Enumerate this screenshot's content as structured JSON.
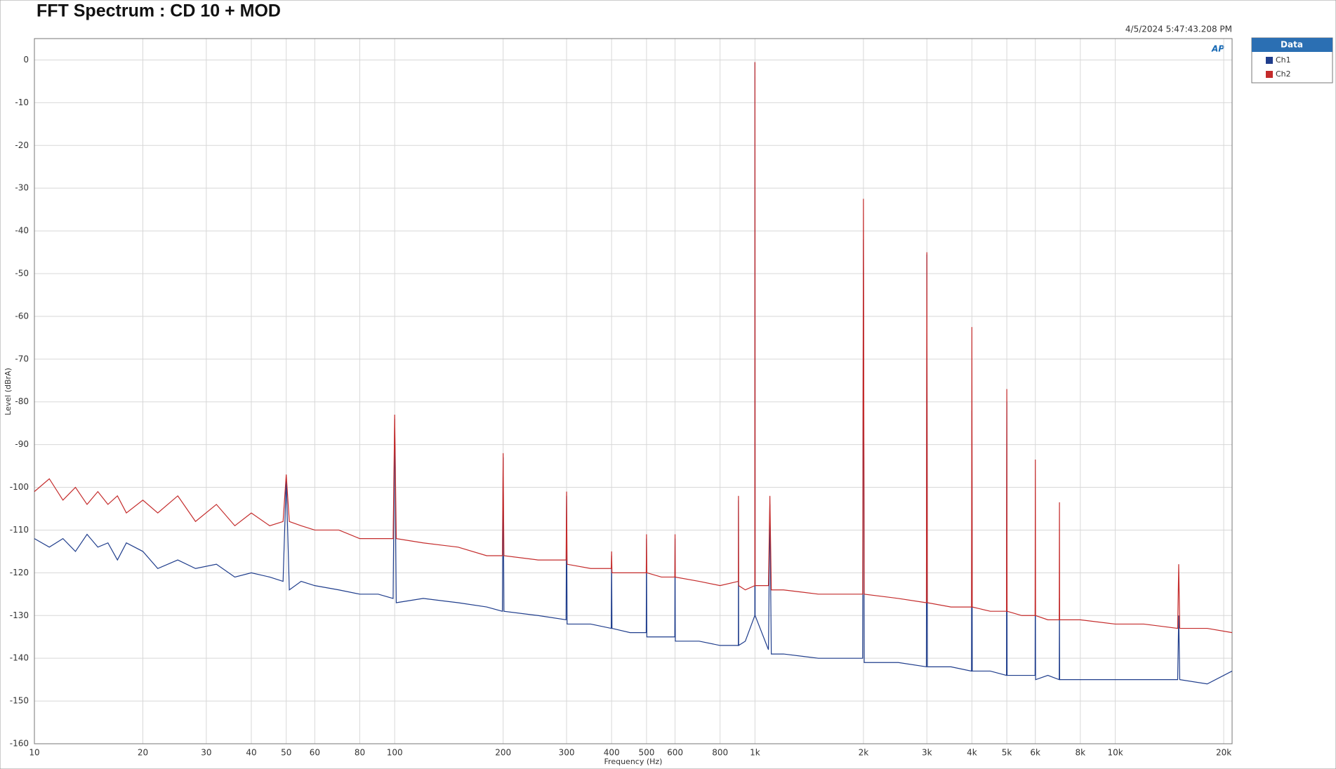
{
  "chart_data": {
    "type": "line",
    "title": "FFT Spectrum : CD 10 + MOD",
    "timestamp": "4/5/2024 5:47:43.208 PM",
    "logo": "AP",
    "x_label": "Frequency (Hz)",
    "y_label": "Level (dBrA)",
    "legend_title": "Data",
    "legend_position": "right",
    "xscale": "log",
    "grid": true,
    "xlim": [
      10,
      21100
    ],
    "ylim": [
      -160,
      5
    ],
    "xticks": [
      10,
      20,
      30,
      40,
      50,
      60,
      80,
      100,
      200,
      300,
      400,
      500,
      600,
      800,
      {
        "value": 1000,
        "label": "1k"
      },
      {
        "value": 2000,
        "label": "2k"
      },
      {
        "value": 3000,
        "label": "3k"
      },
      {
        "value": 4000,
        "label": "4k"
      },
      {
        "value": 5000,
        "label": "5k"
      },
      {
        "value": 6000,
        "label": "6k"
      },
      {
        "value": 8000,
        "label": "8k"
      },
      {
        "value": 10000,
        "label": "10k"
      },
      {
        "value": 20000,
        "label": "20k"
      }
    ],
    "yticks": [
      0,
      -10,
      -20,
      -30,
      -40,
      -50,
      -60,
      -70,
      -80,
      -90,
      -100,
      -110,
      -120,
      -130,
      -140,
      -150,
      -160
    ],
    "x": [
      10,
      11,
      12,
      13,
      14,
      15,
      16,
      17,
      18,
      20,
      22,
      25,
      28,
      32,
      36,
      40,
      45,
      49,
      50,
      51,
      55,
      60,
      70,
      80,
      90,
      99,
      100,
      101,
      120,
      150,
      180,
      199,
      200,
      201,
      250,
      299,
      300,
      301,
      350,
      399,
      400,
      401,
      450,
      499,
      500,
      501,
      550,
      599,
      600,
      601,
      700,
      800,
      899,
      900,
      901,
      940,
      999,
      1000,
      1001,
      1090,
      1100,
      1110,
      1200,
      1500,
      1990,
      2000,
      2010,
      2500,
      2990,
      3000,
      3010,
      3500,
      3990,
      4000,
      4010,
      4500,
      4990,
      5000,
      5010,
      5500,
      5990,
      6000,
      6010,
      6500,
      6990,
      7000,
      7010,
      8000,
      10000,
      12000,
      14900,
      15000,
      15100,
      18000,
      21100
    ],
    "series": [
      {
        "name": "Ch1",
        "color": "#1f3d8c",
        "values": [
          -112,
          -114,
          -112,
          -115,
          -111,
          -114,
          -113,
          -117,
          -113,
          -115,
          -119,
          -117,
          -119,
          -118,
          -121,
          -120,
          -121,
          -122,
          -98,
          -124,
          -122,
          -123,
          -124,
          -125,
          -125,
          -126,
          -84,
          -127,
          -126,
          -127,
          -128,
          -129,
          -93,
          -129,
          -130,
          -131,
          -102,
          -132,
          -132,
          -133,
          -116,
          -133,
          -134,
          -134,
          -112,
          -135,
          -135,
          -135,
          -112,
          -136,
          -136,
          -137,
          -137,
          -103,
          -137,
          -136,
          -130,
          -0.5,
          -130,
          -138,
          -104,
          -139,
          -139,
          -140,
          -140,
          -42,
          -141,
          -141,
          -142,
          -45.5,
          -142,
          -142,
          -143,
          -82,
          -143,
          -143,
          -144,
          -80,
          -144,
          -144,
          -144,
          -116,
          -145,
          -144,
          -145,
          -126,
          -145,
          -145,
          -145,
          -145,
          -145,
          -130,
          -145,
          -146,
          -143
        ]
      },
      {
        "name": "Ch2",
        "color": "#c42b2b",
        "values": [
          -101,
          -98,
          -103,
          -100,
          -104,
          -101,
          -104,
          -102,
          -106,
          -103,
          -106,
          -102,
          -108,
          -104,
          -109,
          -106,
          -109,
          -108,
          -97,
          -108,
          -109,
          -110,
          -110,
          -112,
          -112,
          -112,
          -83,
          -112,
          -113,
          -114,
          -116,
          -116,
          -92,
          -116,
          -117,
          -117,
          -101,
          -118,
          -119,
          -119,
          -115,
          -120,
          -120,
          -120,
          -111,
          -120,
          -121,
          -121,
          -111,
          -121,
          -122,
          -123,
          -122,
          -102,
          -123,
          -124,
          -123,
          -0.5,
          -123,
          -123,
          -102,
          -124,
          -124,
          -125,
          -125,
          -32.5,
          -125,
          -126,
          -127,
          -45,
          -127,
          -128,
          -128,
          -62.5,
          -128,
          -129,
          -129,
          -77,
          -129,
          -130,
          -130,
          -93.5,
          -130,
          -131,
          -131,
          -103.5,
          -131,
          -131,
          -132,
          -132,
          -133,
          -118,
          -133,
          -133,
          -134
        ]
      }
    ]
  }
}
